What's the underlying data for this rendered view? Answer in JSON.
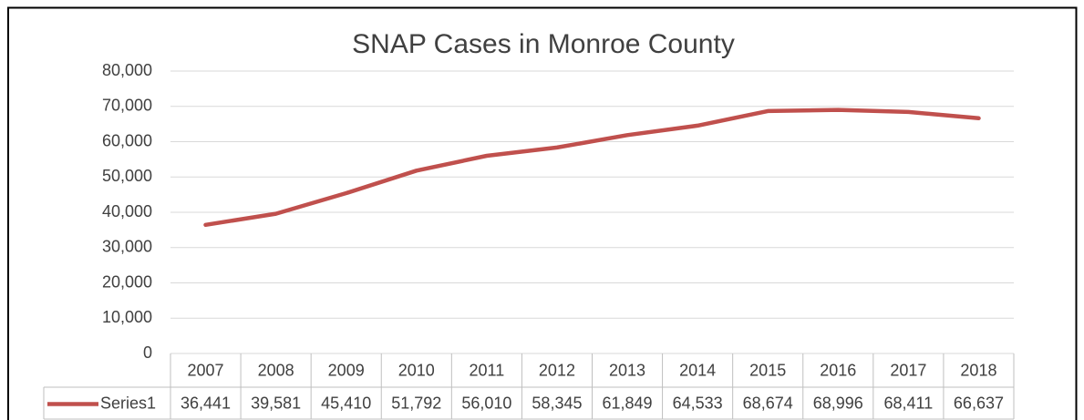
{
  "chart_data": {
    "type": "line",
    "title": "SNAP Cases in Monroe County",
    "categories": [
      "2007",
      "2008",
      "2009",
      "2010",
      "2011",
      "2012",
      "2013",
      "2014",
      "2015",
      "2016",
      "2017",
      "2018"
    ],
    "series": [
      {
        "name": "Series1",
        "color": "#c0504d",
        "values": [
          36441,
          39581,
          45410,
          51792,
          56010,
          58345,
          61849,
          64533,
          68674,
          68996,
          68411,
          66637
        ],
        "value_labels": [
          "36,441",
          "39,581",
          "45,410",
          "51,792",
          "56,010",
          "58,345",
          "61,849",
          "64,533",
          "68,674",
          "68,996",
          "68,411",
          "66,637"
        ]
      }
    ],
    "ylim": [
      0,
      80000
    ],
    "yticks": [
      0,
      {
        "value": 10000,
        "label": "10,000"
      },
      {
        "value": 20000,
        "label": "20,000"
      },
      {
        "value": 30000,
        "label": "30,000"
      },
      {
        "value": 40000,
        "label": "40,000"
      },
      {
        "value": 50000,
        "label": "50,000"
      },
      {
        "value": 60000,
        "label": "60,000"
      },
      {
        "value": 70000,
        "label": "70,000"
      },
      {
        "value": 80000,
        "label": "80,000"
      }
    ],
    "grid": true
  }
}
